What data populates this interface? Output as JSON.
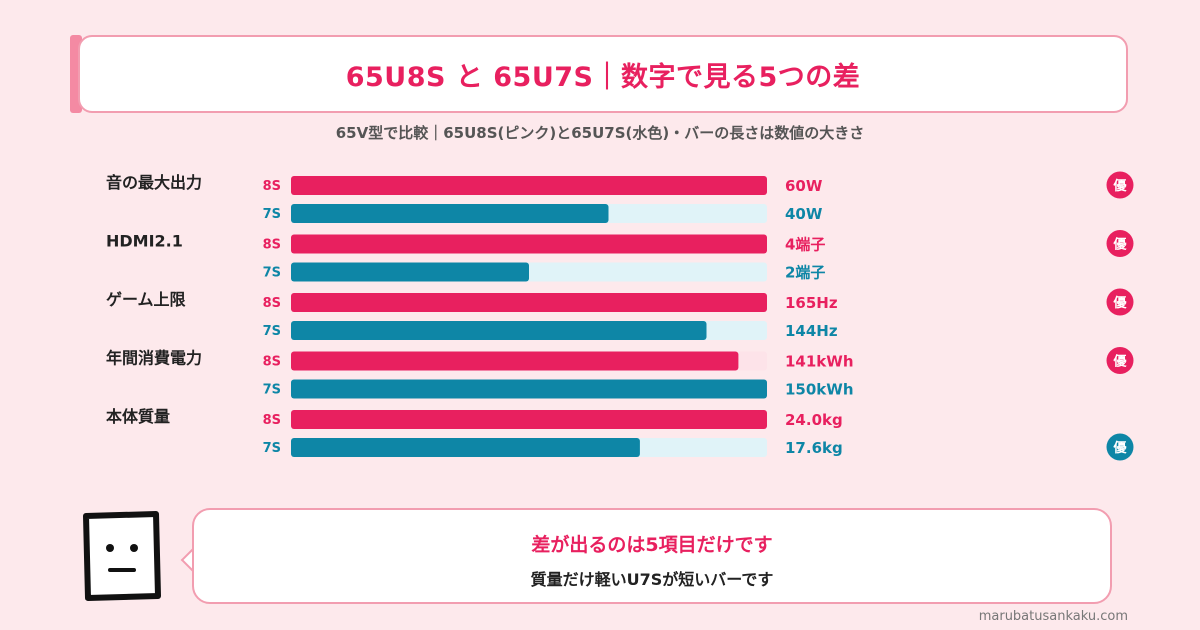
{
  "header": {
    "title": "65U8S と 65U7S｜数字で見る5つの差",
    "subtitle": "65V型で比較｜65U8S(ピンク)と65U7S(水色)・バーの長さは数値の大きさ"
  },
  "colors": {
    "pink": "#e8205f",
    "teal": "#0e86a6",
    "pink_track": "#fde3e9",
    "teal_track": "#e0f3f8",
    "background": "#fde9ec"
  },
  "chart_data": {
    "type": "bar",
    "orientation": "horizontal",
    "series": [
      {
        "name": "8S",
        "color": "#e8205f"
      },
      {
        "name": "7S",
        "color": "#0e86a6"
      }
    ],
    "badge_label": "優",
    "categories": [
      {
        "label": "音の最大出力",
        "rows": [
          {
            "series": "8S",
            "value": 60,
            "display": "60W",
            "fraction": 1.0,
            "best": true
          },
          {
            "series": "7S",
            "value": 40,
            "display": "40W",
            "fraction": 0.667,
            "best": false
          }
        ]
      },
      {
        "label": "HDMI2.1",
        "rows": [
          {
            "series": "8S",
            "value": 4,
            "display": "4端子",
            "fraction": 1.0,
            "best": true
          },
          {
            "series": "7S",
            "value": 2,
            "display": "2端子",
            "fraction": 0.5,
            "best": false
          }
        ]
      },
      {
        "label": "ゲーム上限",
        "rows": [
          {
            "series": "8S",
            "value": 165,
            "display": "165Hz",
            "fraction": 1.0,
            "best": true
          },
          {
            "series": "7S",
            "value": 144,
            "display": "144Hz",
            "fraction": 0.873,
            "best": false
          }
        ]
      },
      {
        "label": "年間消費電力",
        "rows": [
          {
            "series": "8S",
            "value": 141,
            "display": "141kWh",
            "fraction": 0.94,
            "best": true
          },
          {
            "series": "7S",
            "value": 150,
            "display": "150kWh",
            "fraction": 1.0,
            "best": false
          }
        ]
      },
      {
        "label": "本体質量",
        "rows": [
          {
            "series": "8S",
            "value": 24.0,
            "display": "24.0kg",
            "fraction": 1.0,
            "best": false
          },
          {
            "series": "7S",
            "value": 17.6,
            "display": "17.6kg",
            "fraction": 0.733,
            "best": true
          }
        ]
      }
    ]
  },
  "note": {
    "line1": "差が出るのは5項目だけです",
    "line2": "質量だけ軽いU7Sが短いバーです"
  },
  "footer": {
    "site": "marubatusankaku.com"
  }
}
